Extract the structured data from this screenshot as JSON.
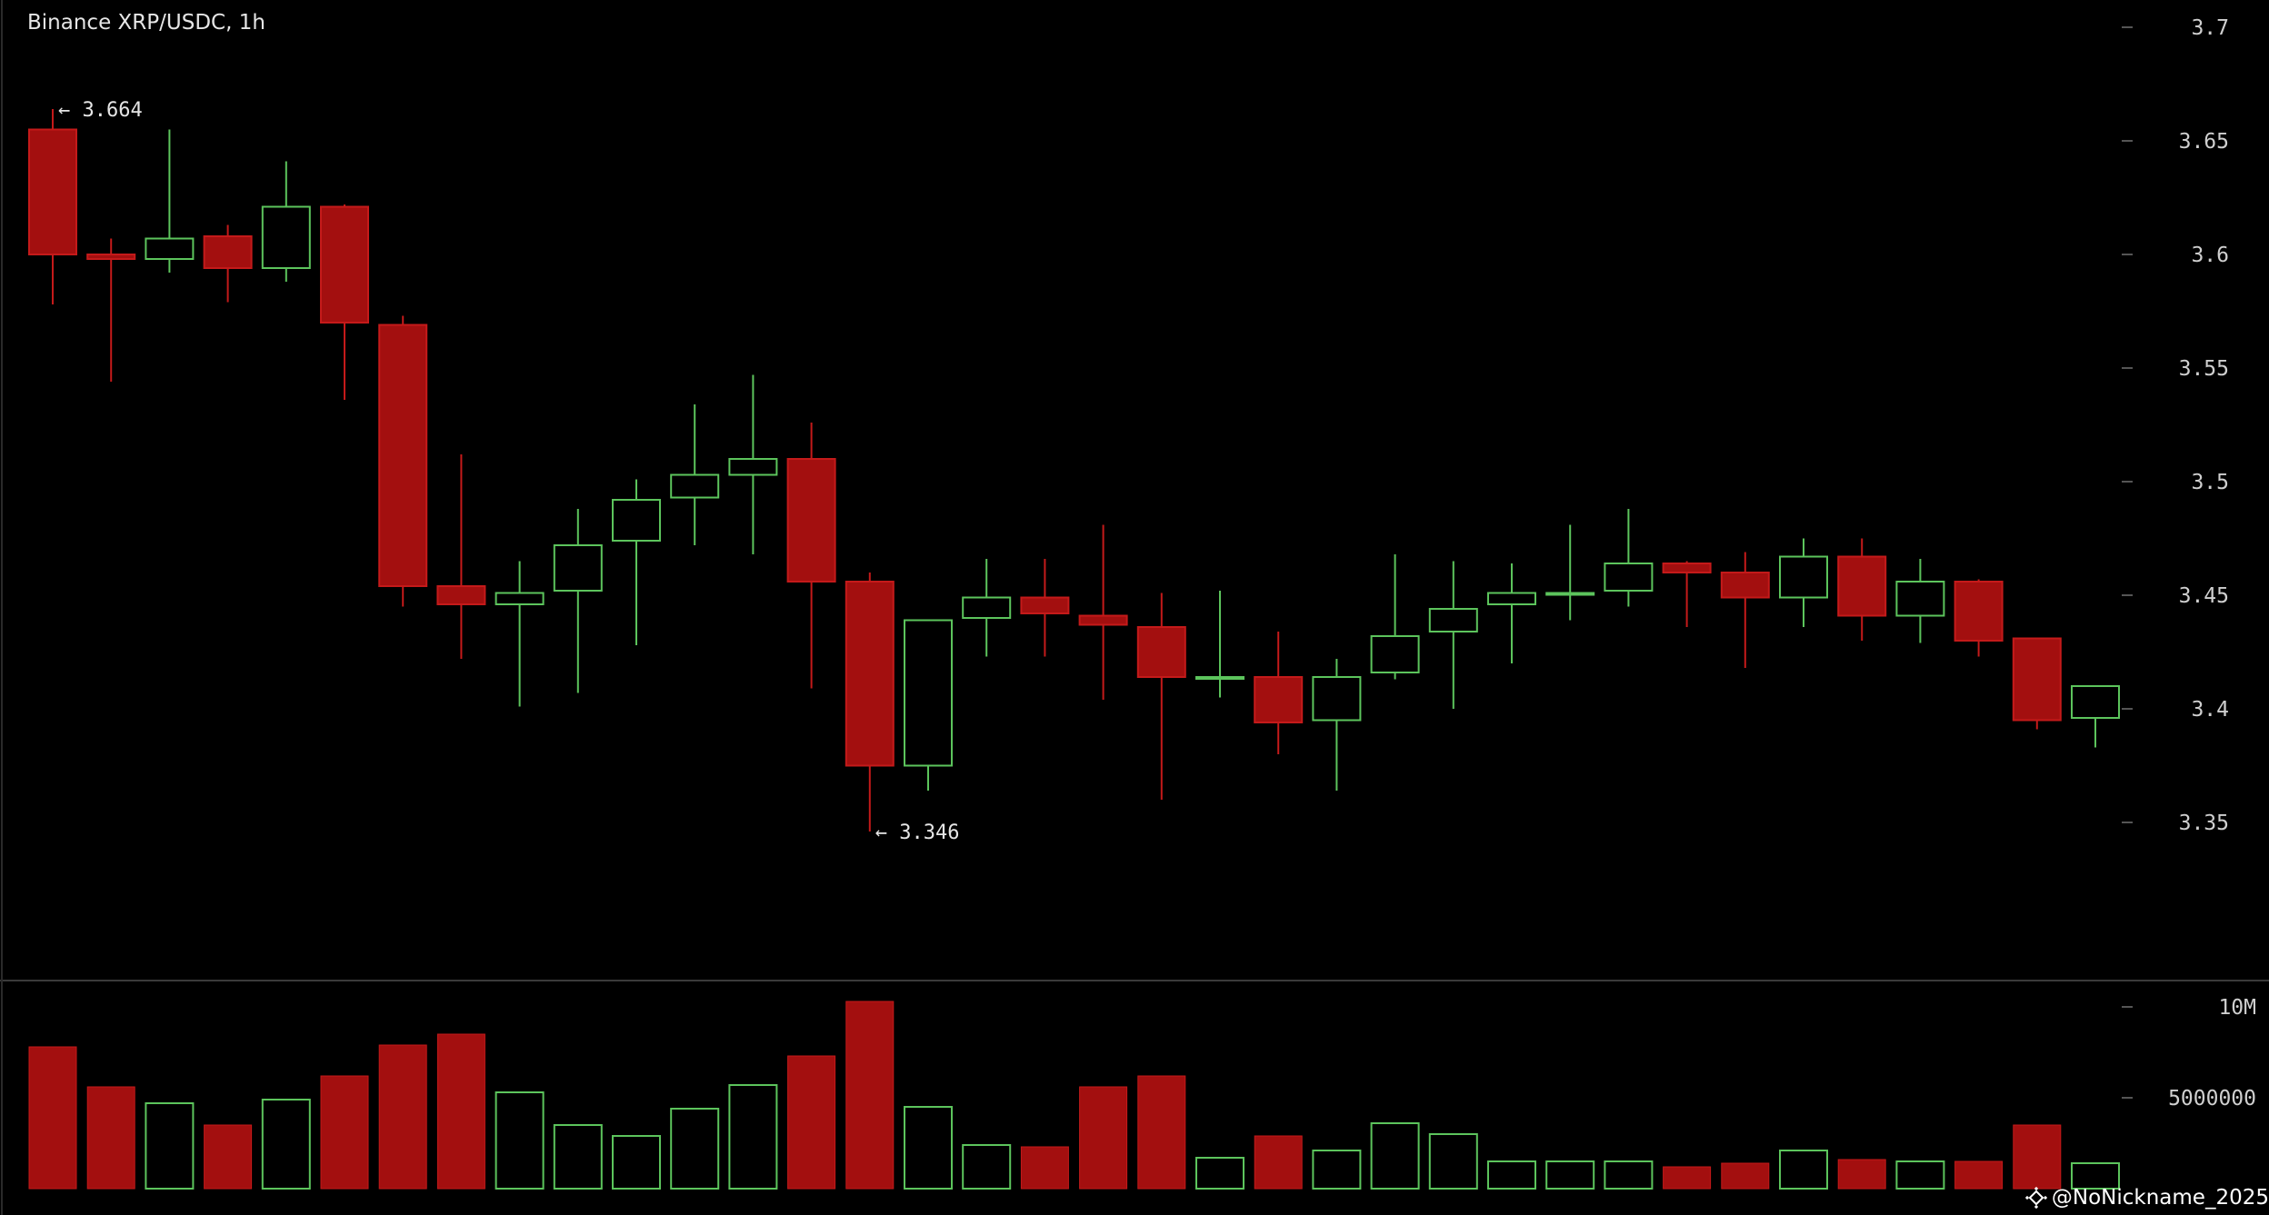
{
  "title": "Binance XRP/USDC, 1h",
  "watermark": "@NoNickname_2025",
  "watermark_icon": "binance-diamond-icon",
  "colors": {
    "background": "#000000",
    "up": "#5cc45c",
    "down": "#a30f0f",
    "grid_tick": "#555555",
    "divider": "#3a3a3a"
  },
  "chart_data": [
    {
      "type": "candlestick",
      "title": "Binance XRP/USDC, 1h",
      "ylim": [
        3.302,
        3.712
      ],
      "yticks": [
        3.35,
        3.4,
        3.45,
        3.5,
        3.55,
        3.6,
        3.65,
        3.7
      ],
      "ytick_labels": [
        "3.35",
        "3.4",
        "3.45",
        "3.5",
        "3.55",
        "3.6",
        "3.65",
        "3.7"
      ],
      "candles": [
        {
          "o": 3.655,
          "h": 3.664,
          "l": 3.578,
          "c": 3.6
        },
        {
          "o": 3.6,
          "h": 3.607,
          "l": 3.544,
          "c": 3.598
        },
        {
          "o": 3.598,
          "h": 3.655,
          "l": 3.592,
          "c": 3.607
        },
        {
          "o": 3.608,
          "h": 3.613,
          "l": 3.579,
          "c": 3.594
        },
        {
          "o": 3.594,
          "h": 3.641,
          "l": 3.588,
          "c": 3.621
        },
        {
          "o": 3.621,
          "h": 3.622,
          "l": 3.536,
          "c": 3.57
        },
        {
          "o": 3.569,
          "h": 3.573,
          "l": 3.445,
          "c": 3.454
        },
        {
          "o": 3.454,
          "h": 3.512,
          "l": 3.422,
          "c": 3.446
        },
        {
          "o": 3.446,
          "h": 3.465,
          "l": 3.401,
          "c": 3.451
        },
        {
          "o": 3.452,
          "h": 3.488,
          "l": 3.407,
          "c": 3.472
        },
        {
          "o": 3.474,
          "h": 3.501,
          "l": 3.428,
          "c": 3.492
        },
        {
          "o": 3.493,
          "h": 3.534,
          "l": 3.472,
          "c": 3.503
        },
        {
          "o": 3.503,
          "h": 3.547,
          "l": 3.468,
          "c": 3.51
        },
        {
          "o": 3.51,
          "h": 3.526,
          "l": 3.409,
          "c": 3.456
        },
        {
          "o": 3.456,
          "h": 3.46,
          "l": 3.346,
          "c": 3.375
        },
        {
          "o": 3.375,
          "h": 3.439,
          "l": 3.364,
          "c": 3.439
        },
        {
          "o": 3.44,
          "h": 3.466,
          "l": 3.423,
          "c": 3.449
        },
        {
          "o": 3.449,
          "h": 3.466,
          "l": 3.423,
          "c": 3.442
        },
        {
          "o": 3.441,
          "h": 3.481,
          "l": 3.404,
          "c": 3.437
        },
        {
          "o": 3.436,
          "h": 3.451,
          "l": 3.36,
          "c": 3.414
        },
        {
          "o": 3.414,
          "h": 3.452,
          "l": 3.405,
          "c": 3.414
        },
        {
          "o": 3.414,
          "h": 3.434,
          "l": 3.38,
          "c": 3.394
        },
        {
          "o": 3.395,
          "h": 3.422,
          "l": 3.364,
          "c": 3.414
        },
        {
          "o": 3.416,
          "h": 3.468,
          "l": 3.413,
          "c": 3.432
        },
        {
          "o": 3.434,
          "h": 3.465,
          "l": 3.4,
          "c": 3.444
        },
        {
          "o": 3.446,
          "h": 3.464,
          "l": 3.42,
          "c": 3.451
        },
        {
          "o": 3.451,
          "h": 3.481,
          "l": 3.439,
          "c": 3.451
        },
        {
          "o": 3.452,
          "h": 3.488,
          "l": 3.445,
          "c": 3.464
        },
        {
          "o": 3.464,
          "h": 3.465,
          "l": 3.436,
          "c": 3.46
        },
        {
          "o": 3.46,
          "h": 3.469,
          "l": 3.418,
          "c": 3.449
        },
        {
          "o": 3.449,
          "h": 3.475,
          "l": 3.436,
          "c": 3.467
        },
        {
          "o": 3.467,
          "h": 3.475,
          "l": 3.43,
          "c": 3.441
        },
        {
          "o": 3.441,
          "h": 3.466,
          "l": 3.429,
          "c": 3.456
        },
        {
          "o": 3.456,
          "h": 3.457,
          "l": 3.423,
          "c": 3.43
        },
        {
          "o": 3.431,
          "h": 3.431,
          "l": 3.391,
          "c": 3.395
        },
        {
          "o": 3.396,
          "h": 3.41,
          "l": 3.383,
          "c": 3.41
        }
      ],
      "annotations": [
        {
          "text": "← 3.664",
          "candle": 0,
          "value": 3.664,
          "anchor": "high"
        },
        {
          "text": "← 3.346",
          "candle": 14,
          "value": 3.346,
          "anchor": "low"
        }
      ]
    },
    {
      "type": "bar",
      "name": "volume",
      "ylim": [
        0,
        10500000
      ],
      "yticks": [
        10000000,
        5000000
      ],
      "ytick_labels": [
        "10M",
        "5000000"
      ],
      "values": [
        7800000,
        5600000,
        4700000,
        3500000,
        4900000,
        6200000,
        7900000,
        8500000,
        5300000,
        3500000,
        2900000,
        4400000,
        5700000,
        7300000,
        10300000,
        4500000,
        2400000,
        2300000,
        5600000,
        6200000,
        1700000,
        2900000,
        2100000,
        3600000,
        3000000,
        1500000,
        1500000,
        1500000,
        1200000,
        1400000,
        2100000,
        1600000,
        1500000,
        1500000,
        3500000,
        1400000
      ]
    }
  ]
}
